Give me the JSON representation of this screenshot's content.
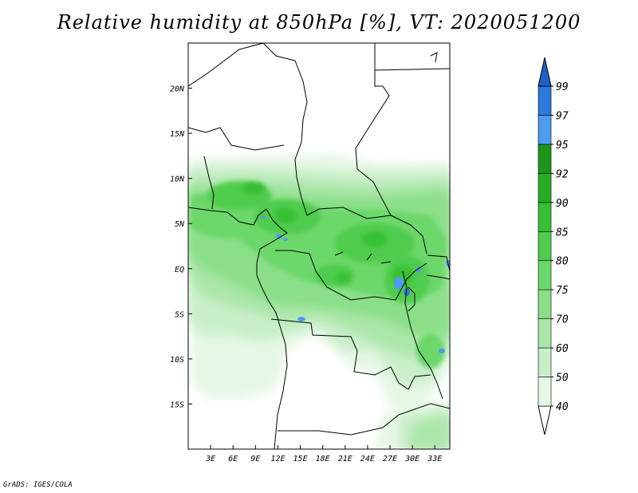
{
  "title": "Relative humidity at 850hPa [%], VT: 2020051200",
  "credit": "GrADS: IGES/COLA",
  "map": {
    "lon_range": [
      0,
      35
    ],
    "lat_range": [
      -20,
      25
    ],
    "x_ticks": [
      {
        "lon": 3,
        "label": "3E"
      },
      {
        "lon": 6,
        "label": "6E"
      },
      {
        "lon": 9,
        "label": "9E"
      },
      {
        "lon": 12,
        "label": "12E"
      },
      {
        "lon": 15,
        "label": "15E"
      },
      {
        "lon": 18,
        "label": "18E"
      },
      {
        "lon": 21,
        "label": "21E"
      },
      {
        "lon": 24,
        "label": "24E"
      },
      {
        "lon": 27,
        "label": "27E"
      },
      {
        "lon": 30,
        "label": "30E"
      },
      {
        "lon": 33,
        "label": "33E"
      }
    ],
    "y_ticks": [
      {
        "lat": 20,
        "label": "20N"
      },
      {
        "lat": 15,
        "label": "15N"
      },
      {
        "lat": 10,
        "label": "10N"
      },
      {
        "lat": 5,
        "label": "5N"
      },
      {
        "lat": 0,
        "label": "EQ"
      },
      {
        "lat": -5,
        "label": "5S"
      },
      {
        "lat": -10,
        "label": "10S"
      },
      {
        "lat": -15,
        "label": "15S"
      }
    ]
  },
  "colorbar": {
    "levels": [
      "40",
      "50",
      "60",
      "70",
      "75",
      "80",
      "85",
      "90",
      "92",
      "95",
      "97",
      "99"
    ],
    "colors": [
      "#ffffff",
      "#e6f7e6",
      "#c9efc9",
      "#aae6a9",
      "#8adf88",
      "#6cd76a",
      "#50cc4d",
      "#38c035",
      "#27ad24",
      "#1c961a",
      "#4c9cf0",
      "#2e7bdc",
      "#1f5fc6"
    ]
  },
  "colors": {
    "land": "#ffffff",
    "border": "#000000"
  }
}
